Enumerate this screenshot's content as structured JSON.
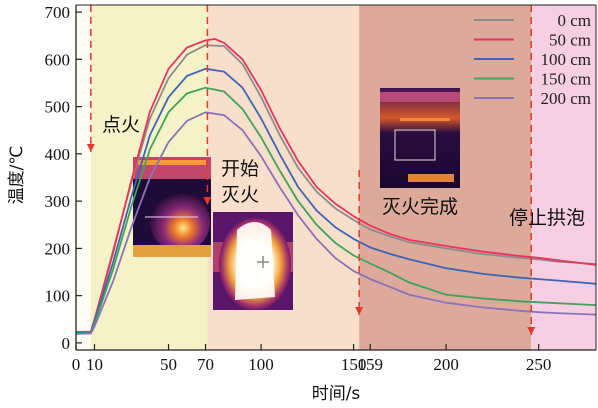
{
  "chart_data": {
    "type": "line",
    "xlabel": "时间/s",
    "ylabel": "温度/℃",
    "xlim": [
      0,
      281
    ],
    "ylim": [
      -15,
      715
    ],
    "x_ticks": [
      0,
      10,
      50,
      70,
      100,
      150,
      159,
      200,
      250
    ],
    "y_ticks": [
      0,
      100,
      200,
      300,
      400,
      500,
      600,
      700
    ],
    "grid": false,
    "legend_position": "top-right",
    "phases": [
      {
        "x0": 0,
        "x1": 8,
        "color": "#fdfdf6"
      },
      {
        "x0": 8,
        "x1": 71,
        "color": "#f6f2c8"
      },
      {
        "x0": 71,
        "x1": 153,
        "color": "#f8dfcb"
      },
      {
        "x0": 153,
        "x1": 246,
        "color": "#dca99a"
      },
      {
        "x0": 246,
        "x1": 281,
        "color": "#f7cfe3"
      }
    ],
    "events": [
      {
        "label": "点火",
        "x": 8
      },
      {
        "label": "开始灭火",
        "lines": [
          "开始",
          "灭火"
        ],
        "x": 71
      },
      {
        "label": "灭火完成",
        "x": 153
      },
      {
        "label": "停止拱泡",
        "x": 246
      }
    ],
    "event_arrow_color": "#e03a2a",
    "insets": [
      {
        "name": "ignition-thermal-image",
        "kind": "flame"
      },
      {
        "name": "extinguish-start-thermal-image",
        "kind": "hot"
      },
      {
        "name": "extinguish-complete-thermal-image",
        "kind": "cool"
      }
    ],
    "series": [
      {
        "name": "0 cm",
        "color": "#8c8c8c",
        "points": [
          [
            0,
            22
          ],
          [
            8,
            23
          ],
          [
            10,
            50
          ],
          [
            20,
            195
          ],
          [
            30,
            340
          ],
          [
            40,
            475
          ],
          [
            50,
            560
          ],
          [
            60,
            610
          ],
          [
            70,
            630
          ],
          [
            80,
            628
          ],
          [
            90,
            590
          ],
          [
            100,
            520
          ],
          [
            110,
            440
          ],
          [
            120,
            370
          ],
          [
            130,
            320
          ],
          [
            140,
            285
          ],
          [
            150,
            260
          ],
          [
            159,
            240
          ],
          [
            170,
            225
          ],
          [
            180,
            213
          ],
          [
            200,
            200
          ],
          [
            220,
            188
          ],
          [
            240,
            180
          ],
          [
            250,
            177
          ],
          [
            260,
            172
          ],
          [
            281,
            167
          ]
        ]
      },
      {
        "name": "50 cm",
        "color": "#e8345e",
        "points": [
          [
            0,
            23
          ],
          [
            8,
            24
          ],
          [
            10,
            48
          ],
          [
            20,
            190
          ],
          [
            30,
            345
          ],
          [
            40,
            490
          ],
          [
            50,
            580
          ],
          [
            60,
            625
          ],
          [
            70,
            640
          ],
          [
            75,
            643
          ],
          [
            80,
            635
          ],
          [
            90,
            600
          ],
          [
            100,
            535
          ],
          [
            110,
            455
          ],
          [
            120,
            385
          ],
          [
            130,
            330
          ],
          [
            140,
            295
          ],
          [
            150,
            268
          ],
          [
            159,
            248
          ],
          [
            170,
            230
          ],
          [
            180,
            218
          ],
          [
            200,
            205
          ],
          [
            220,
            193
          ],
          [
            240,
            184
          ],
          [
            250,
            180
          ],
          [
            260,
            175
          ],
          [
            281,
            165
          ]
        ]
      },
      {
        "name": "100 cm",
        "color": "#3e64b6",
        "points": [
          [
            0,
            21
          ],
          [
            8,
            22
          ],
          [
            10,
            45
          ],
          [
            20,
            170
          ],
          [
            30,
            310
          ],
          [
            40,
            440
          ],
          [
            50,
            520
          ],
          [
            60,
            565
          ],
          [
            70,
            580
          ],
          [
            80,
            574
          ],
          [
            90,
            540
          ],
          [
            100,
            475
          ],
          [
            110,
            400
          ],
          [
            120,
            330
          ],
          [
            130,
            280
          ],
          [
            140,
            245
          ],
          [
            150,
            220
          ],
          [
            159,
            202
          ],
          [
            170,
            188
          ],
          [
            180,
            177
          ],
          [
            200,
            158
          ],
          [
            220,
            146
          ],
          [
            240,
            138
          ],
          [
            250,
            135
          ],
          [
            260,
            132
          ],
          [
            281,
            125
          ]
        ]
      },
      {
        "name": "150 cm",
        "color": "#3fa35a",
        "points": [
          [
            0,
            20
          ],
          [
            8,
            21
          ],
          [
            10,
            40
          ],
          [
            20,
            155
          ],
          [
            30,
            290
          ],
          [
            40,
            410
          ],
          [
            50,
            488
          ],
          [
            60,
            528
          ],
          [
            70,
            540
          ],
          [
            80,
            532
          ],
          [
            90,
            495
          ],
          [
            100,
            435
          ],
          [
            110,
            365
          ],
          [
            120,
            300
          ],
          [
            130,
            250
          ],
          [
            140,
            212
          ],
          [
            150,
            185
          ],
          [
            159,
            168
          ],
          [
            170,
            148
          ],
          [
            180,
            128
          ],
          [
            200,
            102
          ],
          [
            220,
            94
          ],
          [
            240,
            88
          ],
          [
            250,
            86
          ],
          [
            260,
            84
          ],
          [
            281,
            80
          ]
        ]
      },
      {
        "name": "200 cm",
        "color": "#8a74b8",
        "points": [
          [
            0,
            19
          ],
          [
            8,
            20
          ],
          [
            10,
            35
          ],
          [
            20,
            130
          ],
          [
            30,
            245
          ],
          [
            40,
            350
          ],
          [
            50,
            425
          ],
          [
            60,
            470
          ],
          [
            70,
            488
          ],
          [
            80,
            482
          ],
          [
            90,
            450
          ],
          [
            100,
            395
          ],
          [
            110,
            330
          ],
          [
            120,
            270
          ],
          [
            130,
            220
          ],
          [
            140,
            180
          ],
          [
            150,
            152
          ],
          [
            159,
            135
          ],
          [
            170,
            118
          ],
          [
            180,
            102
          ],
          [
            200,
            85
          ],
          [
            220,
            75
          ],
          [
            240,
            68
          ],
          [
            250,
            65
          ],
          [
            260,
            63
          ],
          [
            281,
            60
          ]
        ]
      }
    ]
  }
}
